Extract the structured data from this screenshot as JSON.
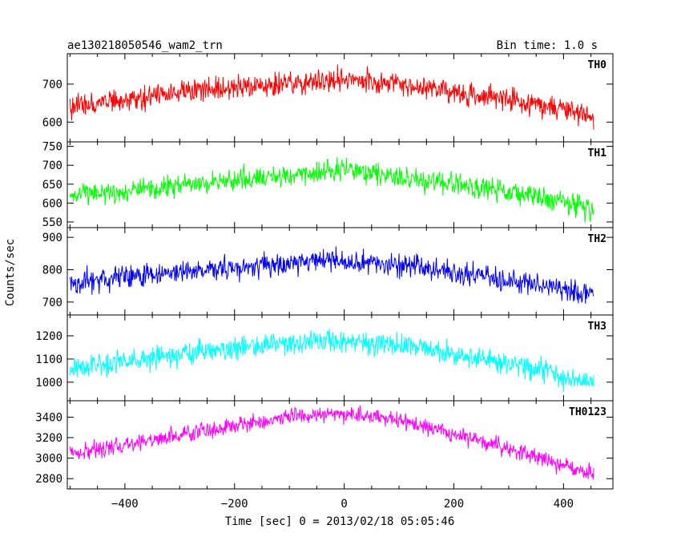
{
  "header": {
    "left": "ae130218050546_wam2_trn",
    "right": "Bin time: 1.0 s"
  },
  "chart_data": {
    "type": "line",
    "xlabel": "Time [sec] 0 = 2013/02/18 05:05:46",
    "ylabel": "Counts/sec",
    "xlim": [
      -505,
      490
    ],
    "xticks": [
      -400,
      -200,
      0,
      200,
      400
    ],
    "xtick_labels": [
      "−400",
      "−200",
      "0",
      "200",
      "400"
    ],
    "panels": [
      {
        "name": "TH0",
        "color": "#ff0000",
        "ylim": [
          548,
          780
        ],
        "yticks": [
          600,
          700
        ],
        "profile": [
          [
            -500,
            640
          ],
          [
            -300,
            680
          ],
          [
            -100,
            700
          ],
          [
            0,
            715
          ],
          [
            100,
            700
          ],
          [
            300,
            660
          ],
          [
            455,
            615
          ]
        ],
        "noise_half_width": 45
      },
      {
        "name": "TH1",
        "color": "#00ff00",
        "ylim": [
          535,
          762
        ],
        "yticks": [
          550,
          600,
          650,
          700,
          750
        ],
        "profile": [
          [
            -500,
            615
          ],
          [
            -300,
            650
          ],
          [
            -100,
            675
          ],
          [
            0,
            690
          ],
          [
            100,
            670
          ],
          [
            300,
            630
          ],
          [
            455,
            585
          ]
        ],
        "noise_half_width": 45
      },
      {
        "name": "TH2",
        "color": "#0000ff",
        "ylim": [
          660,
          930
        ],
        "yticks": [
          700,
          800,
          900
        ],
        "profile": [
          [
            -500,
            760
          ],
          [
            -300,
            795
          ],
          [
            -100,
            820
          ],
          [
            0,
            830
          ],
          [
            100,
            815
          ],
          [
            300,
            770
          ],
          [
            455,
            720
          ]
        ],
        "noise_half_width": 55
      },
      {
        "name": "TH3",
        "color": "#00ffff",
        "ylim": [
          920,
          1290
        ],
        "yticks": [
          1000,
          1100,
          1200
        ],
        "profile": [
          [
            -500,
            1060
          ],
          [
            -300,
            1120
          ],
          [
            -100,
            1170
          ],
          [
            0,
            1185
          ],
          [
            100,
            1160
          ],
          [
            300,
            1080
          ],
          [
            455,
            995
          ]
        ],
        "noise_half_width": 75
      },
      {
        "name": "TH0123",
        "color": "#ff00ff",
        "ylim": [
          2700,
          3560
        ],
        "yticks": [
          2800,
          3000,
          3200,
          3400
        ],
        "profile": [
          [
            -500,
            3040
          ],
          [
            -300,
            3230
          ],
          [
            -100,
            3400
          ],
          [
            0,
            3430
          ],
          [
            100,
            3370
          ],
          [
            300,
            3100
          ],
          [
            455,
            2830
          ]
        ],
        "noise_half_width": 120
      }
    ]
  }
}
